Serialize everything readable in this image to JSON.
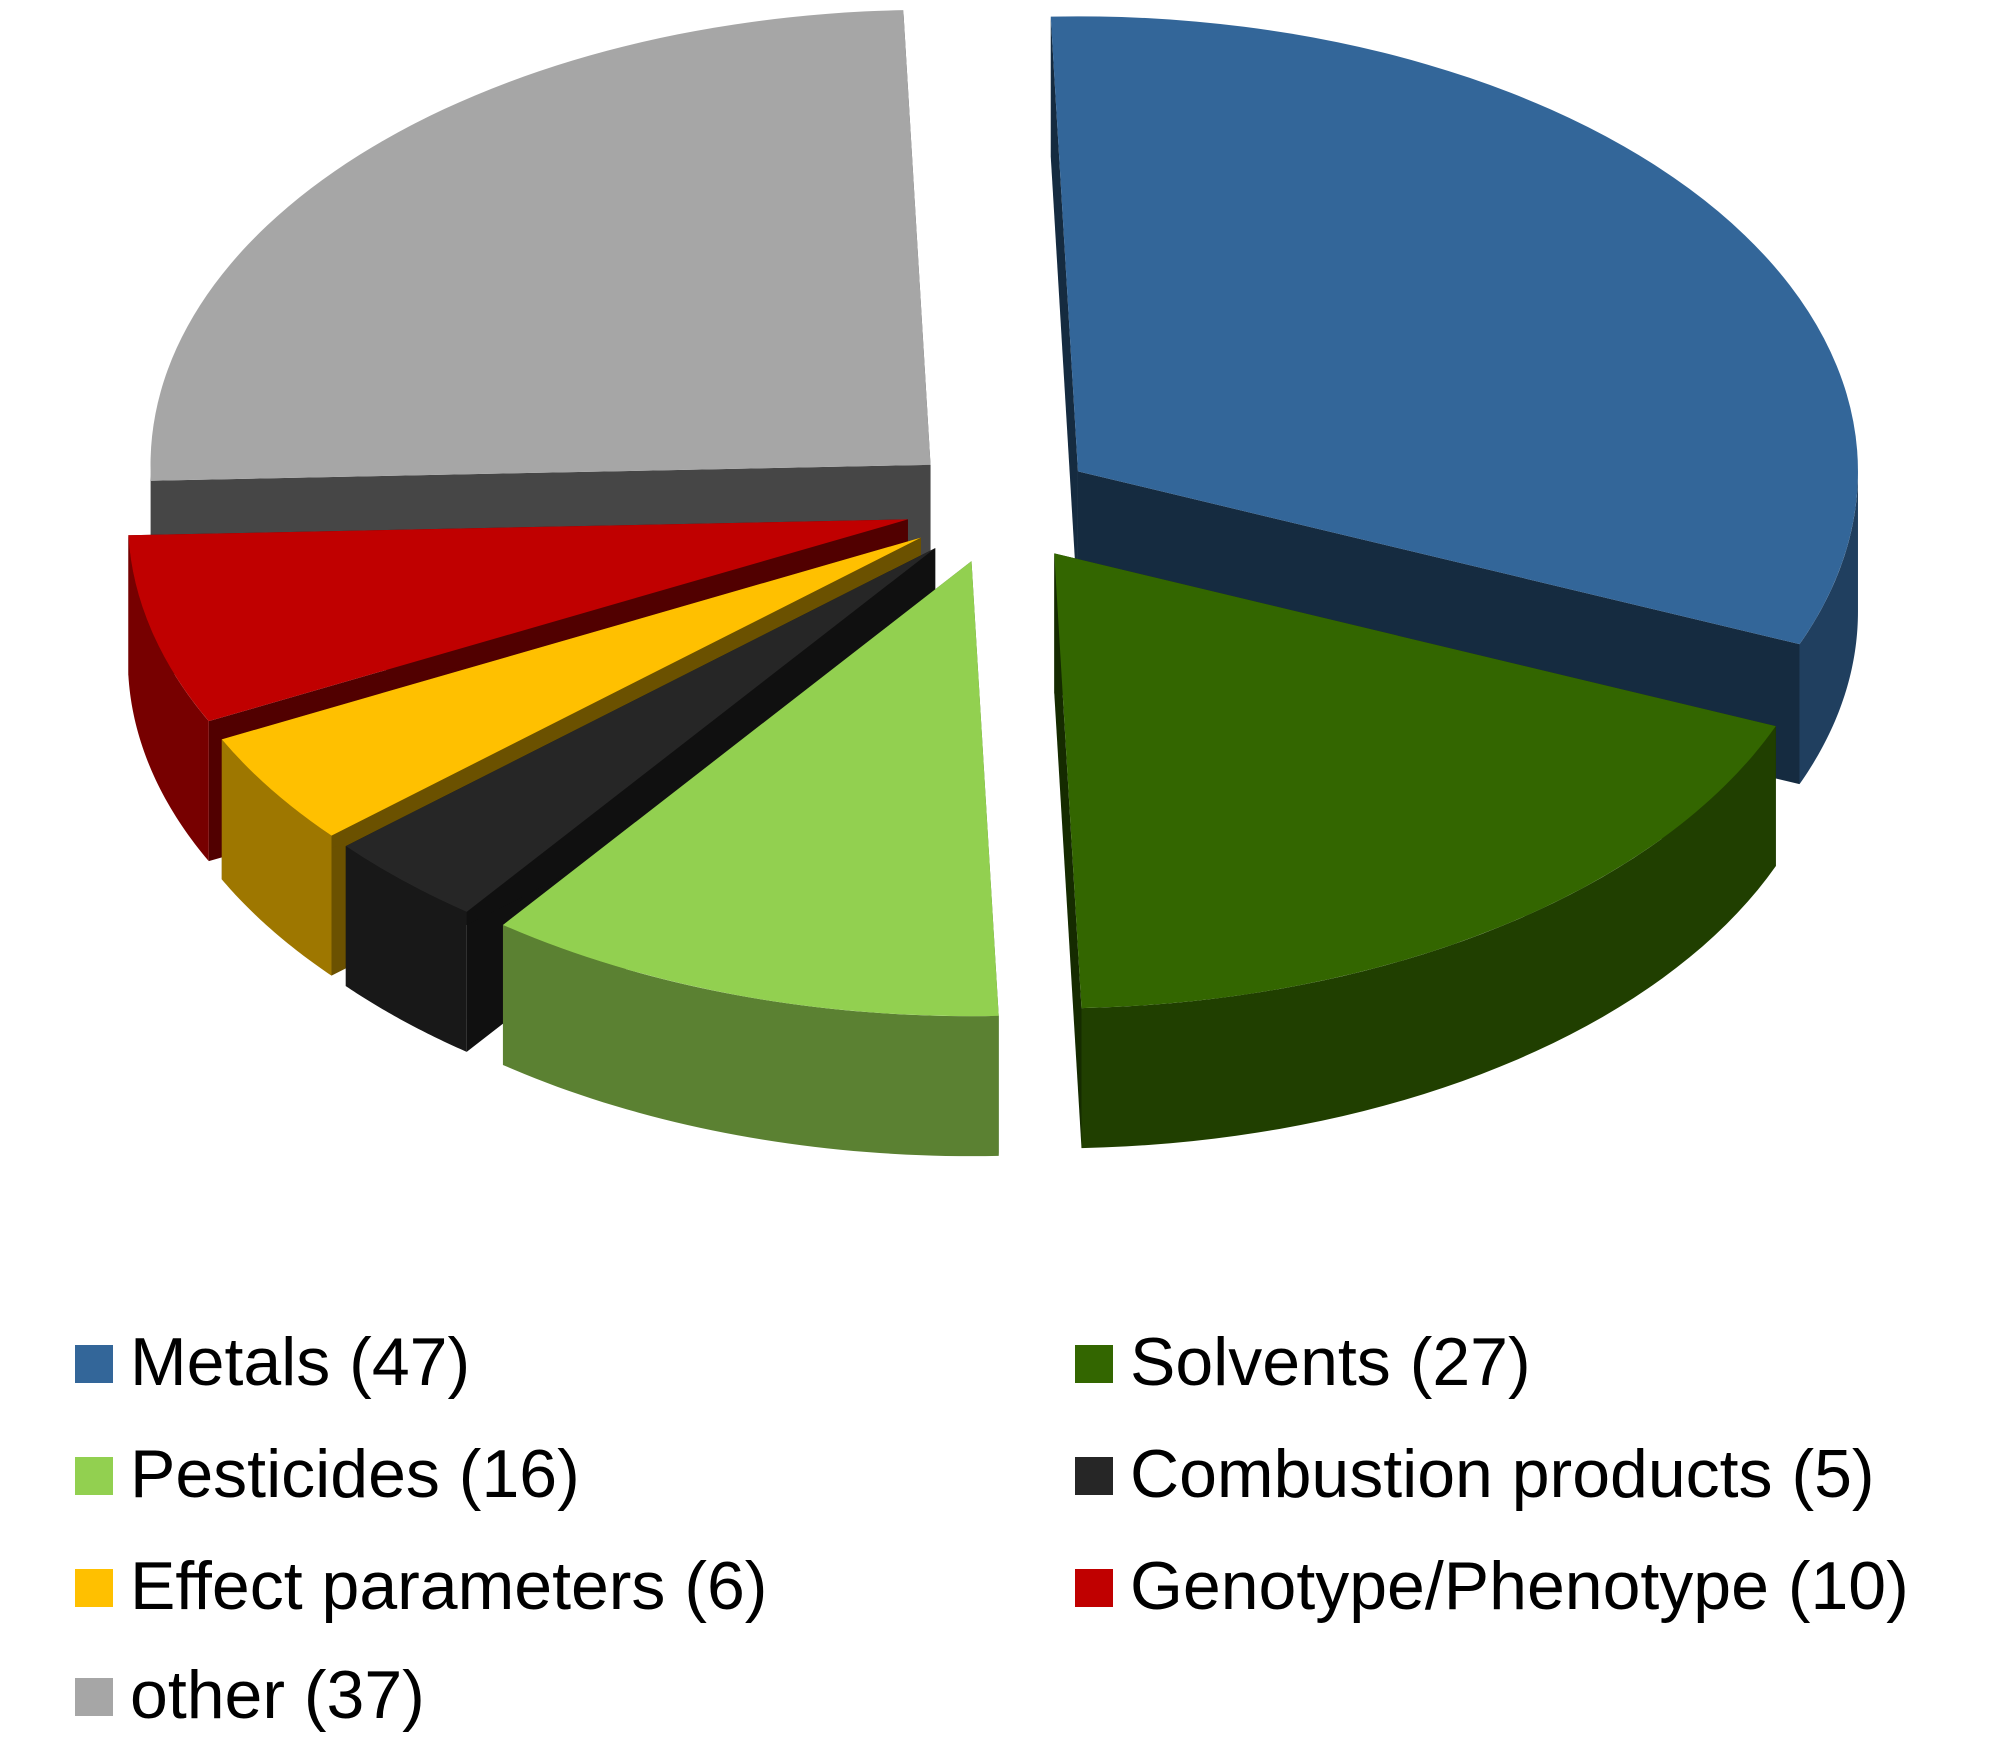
{
  "chart_data": {
    "type": "pie",
    "title": "",
    "style": "3d-exploded",
    "legend_position": "bottom",
    "series": [
      {
        "values": [
          {
            "label": "Metals (47)",
            "category": "Metals",
            "value": 47,
            "color": "#336699"
          },
          {
            "label": "Solvents (27)",
            "category": "Solvents",
            "value": 27,
            "color": "#336600"
          },
          {
            "label": "Pesticides (16)",
            "category": "Pesticides",
            "value": 16,
            "color": "#92D050"
          },
          {
            "label": "Combustion products (5)",
            "category": "Combustion products",
            "value": 5,
            "color": "#262626"
          },
          {
            "label": "Effect parameters (6)",
            "category": "Effect parameters",
            "value": 6,
            "color": "#FFC000"
          },
          {
            "label": "Genotype/Phenotype (10)",
            "category": "Genotype/Phenotype",
            "value": 10,
            "color": "#C00000"
          },
          {
            "label": "other (37)",
            "category": "other",
            "value": 37,
            "color": "#A6A6A6"
          }
        ]
      }
    ]
  }
}
